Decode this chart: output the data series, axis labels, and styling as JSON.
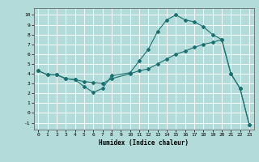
{
  "title": "",
  "xlabel": "Humidex (Indice chaleur)",
  "background_color": "#b2dbd9",
  "grid_color": "#ffffff",
  "line_color": "#1a7070",
  "xlim": [
    -0.5,
    23.5
  ],
  "ylim": [
    -1.7,
    10.7
  ],
  "xticks": [
    0,
    1,
    2,
    3,
    4,
    5,
    6,
    7,
    8,
    9,
    10,
    11,
    12,
    13,
    14,
    15,
    16,
    17,
    18,
    19,
    20,
    21,
    22,
    23
  ],
  "yticks": [
    -1,
    0,
    1,
    2,
    3,
    4,
    5,
    6,
    7,
    8,
    9,
    10
  ],
  "line1_x": [
    0,
    1,
    2,
    3,
    4,
    5,
    6,
    7,
    8,
    10,
    11,
    12,
    13,
    14,
    15,
    16,
    17,
    18,
    19,
    20,
    21,
    22,
    23
  ],
  "line1_y": [
    4.3,
    3.9,
    3.9,
    3.5,
    3.4,
    2.7,
    2.1,
    2.5,
    3.8,
    4.1,
    5.3,
    6.5,
    8.3,
    9.5,
    10.0,
    9.5,
    9.3,
    8.8,
    8.0,
    7.5,
    4.0,
    2.5,
    -1.2
  ],
  "line2_x": [
    0,
    1,
    2,
    3,
    4,
    5,
    6,
    7,
    8,
    10,
    11,
    12,
    13,
    14,
    15,
    16,
    17,
    18,
    19,
    20,
    21,
    22,
    23
  ],
  "line2_y": [
    4.3,
    3.9,
    3.9,
    3.5,
    3.4,
    3.2,
    3.1,
    3.0,
    3.5,
    4.0,
    4.3,
    4.5,
    5.0,
    5.5,
    6.0,
    6.3,
    6.7,
    7.0,
    7.2,
    7.5,
    4.0,
    2.5,
    -1.2
  ],
  "marker": "D",
  "markersize": 2,
  "linewidth": 0.8
}
